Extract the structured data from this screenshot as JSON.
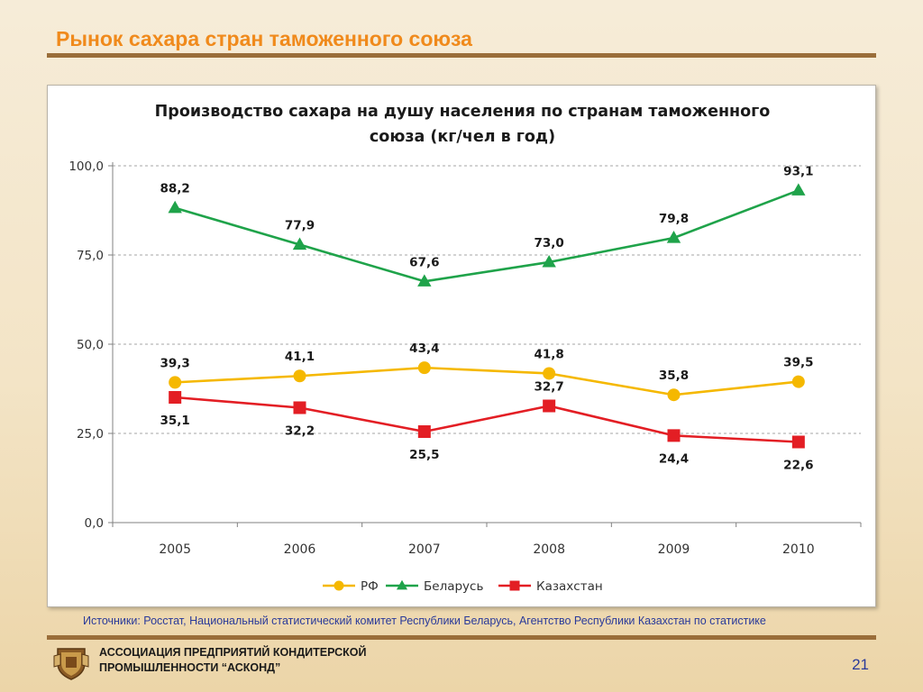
{
  "slide": {
    "title": "Рынок сахара стран таможенного союза",
    "sources": "Источники: Росстат, Национальный статистический комитет Республики Беларусь, Агентство Республики Казахстан по статистике",
    "org_line1": "АССОЦИАЦИЯ ПРЕДПРИЯТИЙ  КОНДИТЕРСКОЙ",
    "org_line2": "ПРОМЫШЛЕННОСТИ “АСКОНД”",
    "page_number": "21",
    "logo_icon": "crest-shield-icon"
  },
  "chart_data": {
    "type": "line",
    "title_line1": "Производство сахара на душу населения по странам таможенного",
    "title_line2": "союза (кг/чел в год)",
    "categories": [
      "2005",
      "2006",
      "2007",
      "2008",
      "2009",
      "2010"
    ],
    "ylim": [
      0,
      100
    ],
    "yticks": [
      "0,0",
      "25,0",
      "50,0",
      "75,0",
      "100,0"
    ],
    "grid": true,
    "legend_position": "bottom-center",
    "series": [
      {
        "name": "РФ",
        "color": "#f5b800",
        "marker": "circle",
        "values": [
          39.3,
          41.1,
          43.4,
          41.8,
          35.8,
          39.5
        ],
        "labels": [
          "39,3",
          "41,1",
          "43,4",
          "41,8",
          "35,8",
          "39,5"
        ],
        "label_pos": [
          "above",
          "above",
          "above",
          "above",
          "above",
          "above"
        ]
      },
      {
        "name": "Беларусь",
        "color": "#1fa34a",
        "marker": "triangle",
        "values": [
          88.2,
          77.9,
          67.6,
          73.0,
          79.8,
          93.1
        ],
        "labels": [
          "88,2",
          "77,9",
          "67,6",
          "73,0",
          "79,8",
          "93,1"
        ],
        "label_pos": [
          "above",
          "above",
          "above",
          "above",
          "above",
          "above"
        ]
      },
      {
        "name": "Казахстан",
        "color": "#e31e24",
        "marker": "square",
        "values": [
          35.1,
          32.2,
          25.5,
          32.7,
          24.4,
          22.6
        ],
        "labels": [
          "35,1",
          "32,2",
          "25,5",
          "32,7",
          "24,4",
          "22,6"
        ],
        "label_pos": [
          "below",
          "below",
          "below",
          "above",
          "below",
          "below"
        ]
      }
    ]
  }
}
